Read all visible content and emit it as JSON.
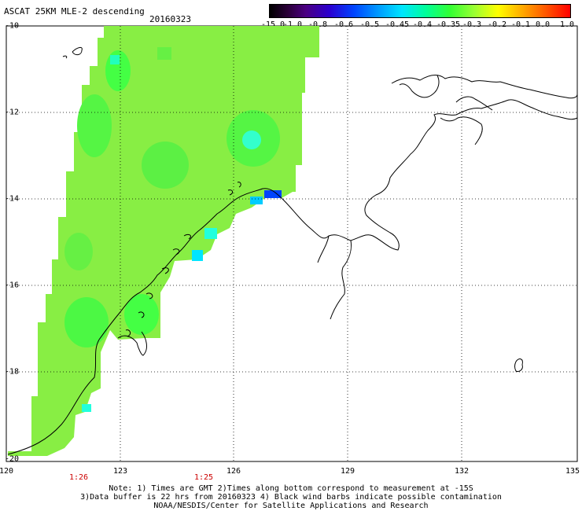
{
  "header": {
    "title": "ASCAT 25KM MLE-2 descending",
    "date": "20160323"
  },
  "colorbar": {
    "labels": [
      "-15.0",
      "-1.0",
      "-0.8",
      "-0.6",
      "-0.5",
      "-0.45",
      "-0.4",
      "-0.35",
      "-0.3",
      "-0.2",
      "-0.1",
      "0.0",
      "1.0"
    ],
    "colors": [
      "#000000",
      "#4b0082",
      "#0044ff",
      "#00e5ff",
      "#33ff33",
      "#ffff00",
      "#ff0000"
    ]
  },
  "axes": {
    "x_ticks": [
      "120",
      "123",
      "126",
      "129",
      "132",
      "135"
    ],
    "y_ticks": [
      "-10",
      "-12",
      "-14",
      "-16",
      "-18",
      "-20"
    ]
  },
  "times": [
    "1:26",
    "1:25"
  ],
  "footer": {
    "line1": "Note: 1) Times are GMT 2)Times along bottom correspond to measurement at -15S",
    "line2": "3)Data buffer is 22 hrs from 20160323 4) Black wind barbs indicate possible contamination",
    "line3": "NOAA/NESDIS/Center for Satellite Applications and Research"
  },
  "colors": {
    "swath_main": "#88ee44",
    "swath_green": "#33ff33",
    "swath_cyan": "#00e5ff",
    "swath_blue": "#0044ff",
    "coastline": "#000000"
  }
}
